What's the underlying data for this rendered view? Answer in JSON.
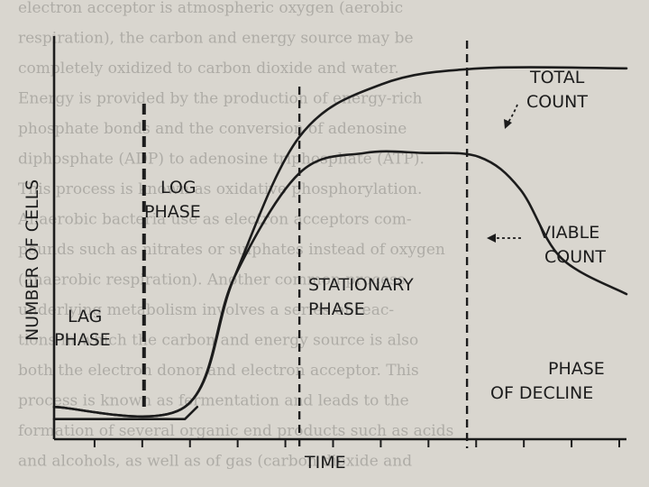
{
  "chart_data": {
    "type": "line",
    "xlabel": "TIME",
    "ylabel": "NUMBER OF CELLS",
    "x_ticks_count": 12,
    "series": [
      {
        "name": "TOTAL COUNT",
        "points": [
          [
            0,
            0.08
          ],
          [
            1.6,
            0.08
          ],
          [
            2.2,
            0.4
          ],
          [
            3.0,
            0.75
          ],
          [
            4.0,
            0.88
          ],
          [
            5.2,
            0.92
          ],
          [
            7.0,
            0.92
          ]
        ]
      },
      {
        "name": "VIABLE COUNT",
        "points": [
          [
            0,
            0.08
          ],
          [
            1.6,
            0.08
          ],
          [
            2.2,
            0.4
          ],
          [
            3.0,
            0.66
          ],
          [
            3.8,
            0.71
          ],
          [
            4.5,
            0.71
          ],
          [
            5.2,
            0.7
          ],
          [
            5.7,
            0.62
          ],
          [
            6.2,
            0.45
          ],
          [
            7.0,
            0.36
          ]
        ]
      }
    ],
    "lag_baseline": {
      "upper": 0.08,
      "lower": 0.05
    },
    "phase_boundaries": [
      1.1,
      3.0,
      5.05
    ],
    "annotations": {
      "lag_line1": "LAG",
      "lag_line2": "PHASE",
      "log_line1": "LOG",
      "log_line2": "PHASE",
      "stat_line1": "STATIONARY",
      "stat_line2": "PHASE",
      "decline_line1": "PHASE",
      "decline_line2": "OF DECLINE",
      "total_line1": "TOTAL",
      "total_line2": "COUNT",
      "viable_line1": "VIABLE",
      "viable_line2": "COUNT"
    }
  },
  "background_text": [
    "electron acceptor is atmospheric oxygen (aerobic",
    "respiration), the carbon and energy source may be",
    "completely oxidized to carbon dioxide and water.",
    "Energy is provided by the production of energy-rich",
    "phosphate bonds and the conversion of adenosine",
    "diphosphate (ADP) to adenosine triphosphate (ATP).",
    "This process is known as oxidative phosphorylation.",
    "Anaerobic bacteria use as electron acceptors com-",
    "pounds such as nitrates or sulphates instead of oxygen",
    "(anaerobic respiration). Another common process",
    "underlying metabolism involves a series of reac-",
    "tions in which the carbon and energy source is also",
    "both the electron donor and electron acceptor. This",
    "process is known as fermentation and leads to the",
    "formation of several organic end products such as acids",
    "and alcohols, as well as of gas (carbon dioxide and"
  ]
}
